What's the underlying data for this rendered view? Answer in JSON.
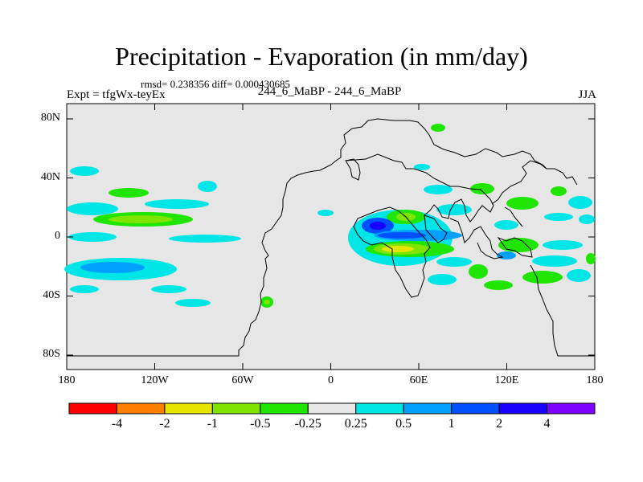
{
  "title": "Precipitation - Evaporation (in mm/day)",
  "stats": "rmsd= 0.238356 diff= 0.000430685",
  "experiment": "Expt = tfgWx-teyEx",
  "comparison": "244_6_MaBP - 244_6_MaBP",
  "season": "JJA",
  "lat_labels": [
    "80N",
    "40N",
    "0",
    "40S",
    "80S"
  ],
  "lat_values": [
    80,
    40,
    0,
    -40,
    -80
  ],
  "lon_labels": [
    "180",
    "120W",
    "60W",
    "0",
    "60E",
    "120E",
    "180"
  ],
  "lon_values": [
    -180,
    -120,
    -60,
    0,
    60,
    120,
    180
  ],
  "colorbar": {
    "labels": [
      "-4",
      "-2",
      "-1",
      "-0.5",
      "-0.25",
      "0.25",
      "0.5",
      "1",
      "2",
      "4"
    ],
    "colors": [
      "#ff0000",
      "#ff8000",
      "#e5e500",
      "#7fe500",
      "#1fe500",
      "#e6e6e6",
      "#00e5e5",
      "#00a0ff",
      "#0050ff",
      "#1a00ff",
      "#8000ff"
    ]
  },
  "colors": {
    "background": "#e6e6e6",
    "land_outline": "#000000"
  }
}
